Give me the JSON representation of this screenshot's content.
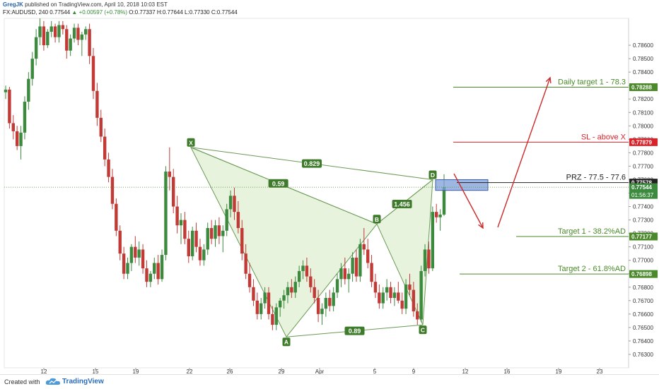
{
  "header": {
    "user": "GregJK",
    "published": "published on TradingView.com, April 10, 2018 10:03 EST",
    "symbol": "FX:AUDUSD, 240",
    "last": "0.77544",
    "change": "▲ +0.00597 (+0.78%)",
    "ohlc": "O:0.77337 H:0.77644 L:0.77330 C:0.77544"
  },
  "footer": {
    "created_with": "Created with",
    "brand": "TradingView"
  },
  "colors": {
    "up": "#3c8a3e",
    "down": "#c23a36",
    "pattern_stroke": "#6a9a55",
    "pattern_fill": "#e4f1d8",
    "target_line": "#4a8a2a",
    "sl_line": "#d9232b",
    "prz_line": "#222222",
    "prz_box": "#7e9ed8",
    "arrow": "#cc2a2a"
  },
  "chart_data": {
    "type": "candlestick",
    "ylim": [
      0.762,
      0.788
    ],
    "y_ticks": [
      "0.76300",
      "0.76400",
      "0.76500",
      "0.76600",
      "0.76700",
      "0.76800",
      "0.76900",
      "0.77000",
      "0.77100",
      "0.77200",
      "0.77300",
      "0.77400",
      "0.77500",
      "0.77600",
      "0.77700",
      "0.77800",
      "0.77900",
      "0.78000",
      "0.78100",
      "0.78200",
      "0.78300",
      "0.78400",
      "0.78500",
      "0.78600"
    ],
    "x_ticks": [
      "12",
      "15",
      "19",
      "22",
      "26",
      "29",
      "Apr",
      "5",
      "9",
      "12",
      "16",
      "19",
      "23"
    ],
    "pattern_points": [
      {
        "label": "X",
        "price": 0.7784
      },
      {
        "label": "A",
        "price": 0.7643
      },
      {
        "label": "B",
        "price": 0.7727
      },
      {
        "label": "C",
        "price": 0.7652
      },
      {
        "label": "D",
        "price": 0.776
      }
    ],
    "ratios": [
      "0.829",
      "0.59",
      "1.456",
      "0.89"
    ],
    "levels": [
      {
        "label": "Daily target 1 - 78.3",
        "price": 0.78288,
        "tag": "0.78288",
        "kind": "target"
      },
      {
        "label": "SL - above X",
        "price": 0.77879,
        "tag": "0.77879",
        "kind": "sl"
      },
      {
        "label": "PRZ - 77.5 - 77.6",
        "price": 0.77578,
        "tag": "0.77578",
        "kind": "prz"
      },
      {
        "label": "Target 1 - 38.2%AD",
        "price": 0.77177,
        "tag": "0.77177",
        "kind": "target"
      },
      {
        "label": "Target 2 - 61.8%AD",
        "price": 0.76898,
        "tag": "0.76898",
        "kind": "target"
      }
    ],
    "current_price": {
      "price": 0.77544,
      "tag": "0.77544",
      "countdown": "01:56:37"
    },
    "candles": [
      [
        0.7825,
        0.783,
        0.782,
        0.7827
      ],
      [
        0.7827,
        0.7829,
        0.7798,
        0.7802
      ],
      [
        0.7802,
        0.7808,
        0.779,
        0.7796
      ],
      [
        0.7796,
        0.78,
        0.7782,
        0.7785
      ],
      [
        0.7785,
        0.78,
        0.7775,
        0.7795
      ],
      [
        0.7795,
        0.7822,
        0.779,
        0.7818
      ],
      [
        0.7818,
        0.784,
        0.7812,
        0.7835
      ],
      [
        0.7835,
        0.7855,
        0.783,
        0.785
      ],
      [
        0.785,
        0.7872,
        0.7845,
        0.7866
      ],
      [
        0.7866,
        0.788,
        0.786,
        0.7874
      ],
      [
        0.7874,
        0.7878,
        0.7856,
        0.786
      ],
      [
        0.786,
        0.7872,
        0.7858,
        0.787
      ],
      [
        0.787,
        0.7878,
        0.7866,
        0.7874
      ],
      [
        0.7874,
        0.7876,
        0.7862,
        0.7866
      ],
      [
        0.7866,
        0.7878,
        0.7862,
        0.7875
      ],
      [
        0.7875,
        0.7878,
        0.7868,
        0.7872
      ],
      [
        0.7872,
        0.7875,
        0.785,
        0.7856
      ],
      [
        0.7856,
        0.7868,
        0.7852,
        0.7865
      ],
      [
        0.7865,
        0.7876,
        0.7862,
        0.7873
      ],
      [
        0.7873,
        0.7876,
        0.786,
        0.7864
      ],
      [
        0.7864,
        0.787,
        0.7852,
        0.7868
      ],
      [
        0.7868,
        0.7874,
        0.7864,
        0.7872
      ],
      [
        0.7872,
        0.7876,
        0.7846,
        0.7852
      ],
      [
        0.7852,
        0.7858,
        0.782,
        0.7826
      ],
      [
        0.7826,
        0.7832,
        0.78,
        0.7806
      ],
      [
        0.7806,
        0.7812,
        0.7788,
        0.7792
      ],
      [
        0.7792,
        0.7798,
        0.777,
        0.7775
      ],
      [
        0.7775,
        0.778,
        0.7758,
        0.7762
      ],
      [
        0.7762,
        0.7768,
        0.7738,
        0.7742
      ],
      [
        0.7742,
        0.7746,
        0.7718,
        0.7722
      ],
      [
        0.7722,
        0.7726,
        0.77,
        0.7705
      ],
      [
        0.7705,
        0.771,
        0.7686,
        0.769
      ],
      [
        0.769,
        0.7702,
        0.7686,
        0.7698
      ],
      [
        0.7698,
        0.7712,
        0.7692,
        0.771
      ],
      [
        0.771,
        0.7718,
        0.7698,
        0.7702
      ],
      [
        0.7702,
        0.7714,
        0.7696,
        0.7708
      ],
      [
        0.7708,
        0.7712,
        0.769,
        0.7694
      ],
      [
        0.7694,
        0.77,
        0.768,
        0.7684
      ],
      [
        0.7684,
        0.7692,
        0.768,
        0.769
      ],
      [
        0.769,
        0.7702,
        0.7686,
        0.7698
      ],
      [
        0.7698,
        0.7704,
        0.7682,
        0.7686
      ],
      [
        0.7686,
        0.7708,
        0.7684,
        0.7704
      ],
      [
        0.7704,
        0.777,
        0.77,
        0.7766
      ],
      [
        0.7766,
        0.7784,
        0.7752,
        0.7762
      ],
      [
        0.7762,
        0.7768,
        0.7735,
        0.774
      ],
      [
        0.774,
        0.7748,
        0.772,
        0.7726
      ],
      [
        0.7726,
        0.7735,
        0.7712,
        0.773
      ],
      [
        0.773,
        0.7736,
        0.7712,
        0.7716
      ],
      [
        0.7716,
        0.7722,
        0.7698,
        0.7703
      ],
      [
        0.7703,
        0.7725,
        0.77,
        0.7722
      ],
      [
        0.7722,
        0.7728,
        0.7706,
        0.771
      ],
      [
        0.771,
        0.7716,
        0.7696,
        0.77
      ],
      [
        0.77,
        0.7712,
        0.7696,
        0.7708
      ],
      [
        0.7708,
        0.7728,
        0.7704,
        0.7724
      ],
      [
        0.7724,
        0.773,
        0.7712,
        0.7716
      ],
      [
        0.7716,
        0.773,
        0.771,
        0.7726
      ],
      [
        0.7726,
        0.7732,
        0.7712,
        0.7718
      ],
      [
        0.7718,
        0.7726,
        0.7706,
        0.7722
      ],
      [
        0.7722,
        0.7742,
        0.7718,
        0.7738
      ],
      [
        0.7738,
        0.7752,
        0.7732,
        0.7748
      ],
      [
        0.7748,
        0.7754,
        0.773,
        0.7736
      ],
      [
        0.7736,
        0.7744,
        0.772,
        0.7724
      ],
      [
        0.7724,
        0.773,
        0.77,
        0.7705
      ],
      [
        0.7705,
        0.7712,
        0.7686,
        0.769
      ],
      [
        0.769,
        0.7698,
        0.7676,
        0.768
      ],
      [
        0.768,
        0.7686,
        0.7666,
        0.767
      ],
      [
        0.767,
        0.7676,
        0.7656,
        0.766
      ],
      [
        0.766,
        0.7672,
        0.7656,
        0.7668
      ],
      [
        0.7668,
        0.768,
        0.7664,
        0.7676
      ],
      [
        0.7676,
        0.768,
        0.7656,
        0.766
      ],
      [
        0.766,
        0.7666,
        0.7648,
        0.7652
      ],
      [
        0.7652,
        0.7668,
        0.7648,
        0.7665
      ],
      [
        0.7665,
        0.7672,
        0.7658,
        0.767
      ],
      [
        0.767,
        0.7678,
        0.7664,
        0.7674
      ],
      [
        0.7674,
        0.7684,
        0.7668,
        0.768
      ],
      [
        0.768,
        0.7686,
        0.7672,
        0.7676
      ],
      [
        0.7676,
        0.7688,
        0.7672,
        0.7684
      ],
      [
        0.7684,
        0.7696,
        0.768,
        0.7692
      ],
      [
        0.7692,
        0.77,
        0.7686,
        0.7696
      ],
      [
        0.7696,
        0.7702,
        0.7684,
        0.7688
      ],
      [
        0.7688,
        0.7694,
        0.7676,
        0.768
      ],
      [
        0.768,
        0.7686,
        0.7668,
        0.7672
      ],
      [
        0.7672,
        0.7678,
        0.7654,
        0.766
      ],
      [
        0.766,
        0.7668,
        0.7652,
        0.7664
      ],
      [
        0.7664,
        0.7676,
        0.7658,
        0.7672
      ],
      [
        0.7672,
        0.7678,
        0.7662,
        0.7666
      ],
      [
        0.7666,
        0.768,
        0.7662,
        0.7676
      ],
      [
        0.7676,
        0.769,
        0.7672,
        0.7686
      ],
      [
        0.7686,
        0.7698,
        0.768,
        0.7694
      ],
      [
        0.7694,
        0.7702,
        0.7682,
        0.7686
      ],
      [
        0.7686,
        0.7694,
        0.7676,
        0.769
      ],
      [
        0.769,
        0.7706,
        0.7684,
        0.7702
      ],
      [
        0.7702,
        0.7708,
        0.7684,
        0.7688
      ],
      [
        0.7688,
        0.7716,
        0.7684,
        0.7712
      ],
      [
        0.7712,
        0.7724,
        0.7704,
        0.7708
      ],
      [
        0.7708,
        0.7716,
        0.7694,
        0.7698
      ],
      [
        0.7698,
        0.7704,
        0.768,
        0.7684
      ],
      [
        0.7684,
        0.769,
        0.7672,
        0.7676
      ],
      [
        0.7676,
        0.7682,
        0.7664,
        0.7668
      ],
      [
        0.7668,
        0.768,
        0.7664,
        0.7676
      ],
      [
        0.7676,
        0.7686,
        0.767,
        0.768
      ],
      [
        0.768,
        0.7684,
        0.7668,
        0.7672
      ],
      [
        0.7672,
        0.768,
        0.7666,
        0.7676
      ],
      [
        0.7676,
        0.7684,
        0.7668,
        0.767
      ],
      [
        0.767,
        0.7676,
        0.766,
        0.7664
      ],
      [
        0.7664,
        0.7686,
        0.766,
        0.7682
      ],
      [
        0.7682,
        0.769,
        0.7674,
        0.7678
      ],
      [
        0.7678,
        0.7684,
        0.7658,
        0.7662
      ],
      [
        0.7662,
        0.7668,
        0.7652,
        0.7656
      ],
      [
        0.7656,
        0.7696,
        0.7654,
        0.7692
      ],
      [
        0.7692,
        0.7712,
        0.7688,
        0.7708
      ],
      [
        0.7708,
        0.7714,
        0.769,
        0.7694
      ],
      [
        0.7694,
        0.774,
        0.7692,
        0.7736
      ],
      [
        0.7736,
        0.7742,
        0.7728,
        0.7732
      ],
      [
        0.7732,
        0.7738,
        0.7722,
        0.7734
      ],
      [
        0.7734,
        0.7764,
        0.7733,
        0.77544
      ]
    ]
  }
}
